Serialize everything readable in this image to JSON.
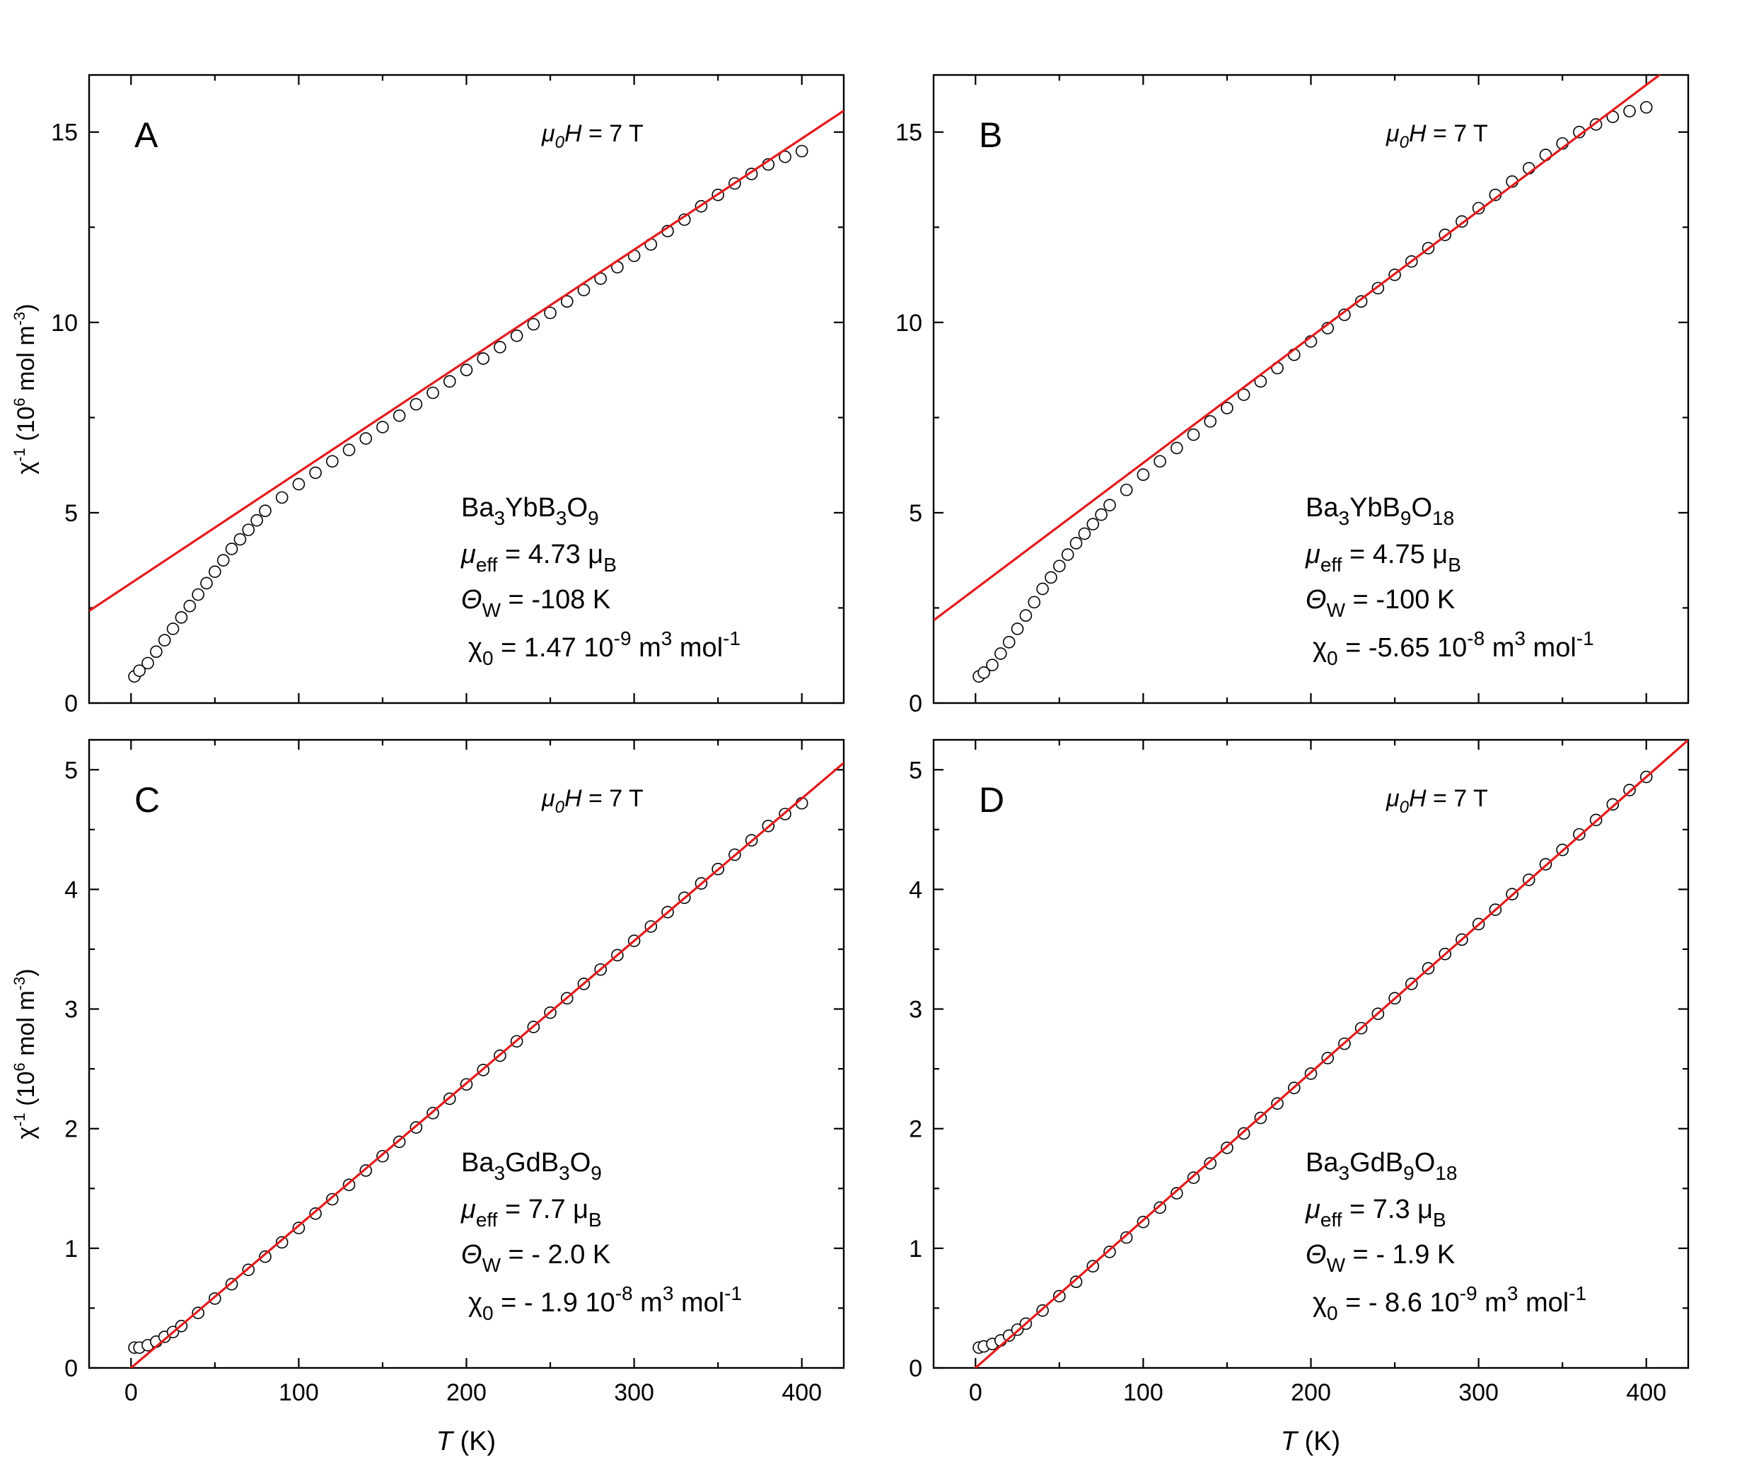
{
  "y_axis_label": {
    "base": "χ",
    "sup1": "-1",
    "open": " (10",
    "sup2": "6",
    "mid": " mol m",
    "sup3": "-3",
    "close": ")"
  },
  "x_axis_label": {
    "symbol": "T",
    "unit": " (K)"
  },
  "chart_data": [
    {
      "panel": "A",
      "type": "scatter",
      "field": {
        "mu": "μ",
        "sub": "0",
        "H": "H",
        "value": " =  7 T"
      },
      "compound": [
        {
          "t": "Ba"
        },
        {
          "t": "3",
          "sub": true
        },
        {
          "t": "YbB"
        },
        {
          "t": "3",
          "sub": true
        },
        {
          "t": "O"
        },
        {
          "t": "9",
          "sub": true
        }
      ],
      "params": {
        "mu_eff": "4.73",
        "theta_w": "-108 K",
        "chi0": "1.47 10",
        "chi0_exp": "-9"
      },
      "xlim": [
        -25,
        425
      ],
      "ylim": [
        0,
        16.5
      ],
      "xticks": [
        "0",
        "100",
        "200",
        "300",
        "400"
      ],
      "yticks": [
        "0",
        "5",
        "10",
        "15"
      ],
      "show_xticklabels": false,
      "fit": {
        "slope": 0.0292,
        "intercept": 3.15
      },
      "data": {
        "x": [
          2,
          5,
          10,
          15,
          20,
          25,
          30,
          35,
          40,
          45,
          50,
          55,
          60,
          65,
          70,
          75,
          80,
          90,
          100,
          110,
          120,
          130,
          140,
          150,
          160,
          170,
          180,
          190,
          200,
          210,
          220,
          230,
          240,
          250,
          260,
          270,
          280,
          290,
          300,
          310,
          320,
          330,
          340,
          350,
          360,
          370,
          380,
          390,
          400
        ],
        "y": [
          0.7,
          0.85,
          1.05,
          1.35,
          1.65,
          1.95,
          2.25,
          2.55,
          2.85,
          3.15,
          3.45,
          3.75,
          4.05,
          4.3,
          4.55,
          4.8,
          5.05,
          5.4,
          5.75,
          6.05,
          6.35,
          6.65,
          6.95,
          7.25,
          7.55,
          7.85,
          8.15,
          8.45,
          8.75,
          9.05,
          9.35,
          9.65,
          9.95,
          10.25,
          10.55,
          10.85,
          11.15,
          11.45,
          11.75,
          12.05,
          12.4,
          12.7,
          13.05,
          13.35,
          13.65,
          13.9,
          14.15,
          14.35,
          14.5
        ]
      }
    },
    {
      "panel": "B",
      "type": "scatter",
      "field": {
        "mu": "μ",
        "sub": "0",
        "H": "H",
        "value": " =  7 T"
      },
      "compound": [
        {
          "t": "Ba"
        },
        {
          "t": "3",
          "sub": true
        },
        {
          "t": "YbB"
        },
        {
          "t": "9",
          "sub": true
        },
        {
          "t": "O"
        },
        {
          "t": "18",
          "sub": true
        }
      ],
      "params": {
        "mu_eff": "4.75",
        "theta_w": "-100 K",
        "chi0": "-5.65 10",
        "chi0_exp": "-8"
      },
      "xlim": [
        -25,
        425
      ],
      "ylim": [
        0,
        16.5
      ],
      "xticks": [
        "0",
        "100",
        "200",
        "300",
        "400"
      ],
      "yticks": [
        "0",
        "5",
        "10",
        "15"
      ],
      "show_xticklabels": false,
      "fit": {
        "slope": 0.0331,
        "intercept": 3.0
      },
      "data": {
        "x": [
          2,
          5,
          10,
          15,
          20,
          25,
          30,
          35,
          40,
          45,
          50,
          55,
          60,
          65,
          70,
          75,
          80,
          90,
          100,
          110,
          120,
          130,
          140,
          150,
          160,
          170,
          180,
          190,
          200,
          210,
          220,
          230,
          240,
          250,
          260,
          270,
          280,
          290,
          300,
          310,
          320,
          330,
          340,
          350,
          360,
          370,
          380,
          390,
          400
        ],
        "y": [
          0.7,
          0.8,
          1.0,
          1.3,
          1.6,
          1.95,
          2.3,
          2.65,
          3.0,
          3.3,
          3.6,
          3.9,
          4.2,
          4.45,
          4.7,
          4.95,
          5.2,
          5.6,
          6.0,
          6.35,
          6.7,
          7.05,
          7.4,
          7.75,
          8.1,
          8.45,
          8.8,
          9.15,
          9.5,
          9.85,
          10.2,
          10.55,
          10.9,
          11.25,
          11.6,
          11.95,
          12.3,
          12.65,
          13.0,
          13.35,
          13.7,
          14.05,
          14.4,
          14.7,
          15.0,
          15.2,
          15.4,
          15.55,
          15.65
        ]
      }
    },
    {
      "panel": "C",
      "type": "scatter",
      "field": {
        "mu": "μ",
        "sub": "0",
        "H": "H",
        "value": " =  7 T"
      },
      "compound": [
        {
          "t": "Ba"
        },
        {
          "t": "3",
          "sub": true
        },
        {
          "t": "GdB"
        },
        {
          "t": "3",
          "sub": true
        },
        {
          "t": "O"
        },
        {
          "t": "9",
          "sub": true
        }
      ],
      "params": {
        "mu_eff": " 7.7",
        "theta_w": "- 2.0 K",
        "chi0": "- 1.9 10",
        "chi0_exp": "-8"
      },
      "xlim": [
        -25,
        425
      ],
      "ylim": [
        0,
        5.25
      ],
      "xticks": [
        "0",
        "100",
        "200",
        "300",
        "400"
      ],
      "yticks": [
        "0",
        "1",
        "2",
        "3",
        "4",
        "5"
      ],
      "show_xticklabels": true,
      "fit": {
        "slope": 0.0119,
        "intercept": 0.0
      },
      "data": {
        "x": [
          2,
          5,
          10,
          15,
          20,
          25,
          30,
          40,
          50,
          60,
          70,
          80,
          90,
          100,
          110,
          120,
          130,
          140,
          150,
          160,
          170,
          180,
          190,
          200,
          210,
          220,
          230,
          240,
          250,
          260,
          270,
          280,
          290,
          300,
          310,
          320,
          330,
          340,
          350,
          360,
          370,
          380,
          390,
          400
        ],
        "y": [
          0.17,
          0.17,
          0.19,
          0.22,
          0.26,
          0.3,
          0.35,
          0.46,
          0.58,
          0.7,
          0.82,
          0.93,
          1.05,
          1.17,
          1.29,
          1.41,
          1.53,
          1.65,
          1.77,
          1.89,
          2.01,
          2.13,
          2.25,
          2.37,
          2.49,
          2.61,
          2.73,
          2.85,
          2.97,
          3.09,
          3.21,
          3.33,
          3.45,
          3.57,
          3.69,
          3.81,
          3.93,
          4.05,
          4.17,
          4.29,
          4.41,
          4.53,
          4.63,
          4.72
        ]
      }
    },
    {
      "panel": "D",
      "type": "scatter",
      "field": {
        "mu": "μ",
        "sub": "0",
        "H": "H",
        "value": " =  7 T"
      },
      "compound": [
        {
          "t": "Ba"
        },
        {
          "t": "3",
          "sub": true
        },
        {
          "t": "GdB"
        },
        {
          "t": "9",
          "sub": true
        },
        {
          "t": "O"
        },
        {
          "t": "18",
          "sub": true
        }
      ],
      "params": {
        "mu_eff": " 7.3",
        "theta_w": "- 1.9 K",
        "chi0": "- 8.6 10",
        "chi0_exp": "-9"
      },
      "xlim": [
        -25,
        425
      ],
      "ylim": [
        0,
        5.25
      ],
      "xticks": [
        "0",
        "100",
        "200",
        "300",
        "400"
      ],
      "yticks": [
        "0",
        "1",
        "2",
        "3",
        "4",
        "5"
      ],
      "show_xticklabels": true,
      "fit": {
        "slope": 0.01235,
        "intercept": 0.0
      },
      "data": {
        "x": [
          2,
          5,
          10,
          15,
          20,
          25,
          30,
          40,
          50,
          60,
          70,
          80,
          90,
          100,
          110,
          120,
          130,
          140,
          150,
          160,
          170,
          180,
          190,
          200,
          210,
          220,
          230,
          240,
          250,
          260,
          270,
          280,
          290,
          300,
          310,
          320,
          330,
          340,
          350,
          360,
          370,
          380,
          390,
          400
        ],
        "y": [
          0.17,
          0.18,
          0.2,
          0.23,
          0.27,
          0.32,
          0.37,
          0.48,
          0.6,
          0.72,
          0.85,
          0.97,
          1.09,
          1.22,
          1.34,
          1.46,
          1.59,
          1.71,
          1.84,
          1.96,
          2.09,
          2.21,
          2.34,
          2.46,
          2.59,
          2.71,
          2.84,
          2.96,
          3.09,
          3.21,
          3.34,
          3.46,
          3.58,
          3.71,
          3.83,
          3.96,
          4.08,
          4.21,
          4.33,
          4.46,
          4.58,
          4.71,
          4.83,
          4.94
        ]
      }
    }
  ]
}
